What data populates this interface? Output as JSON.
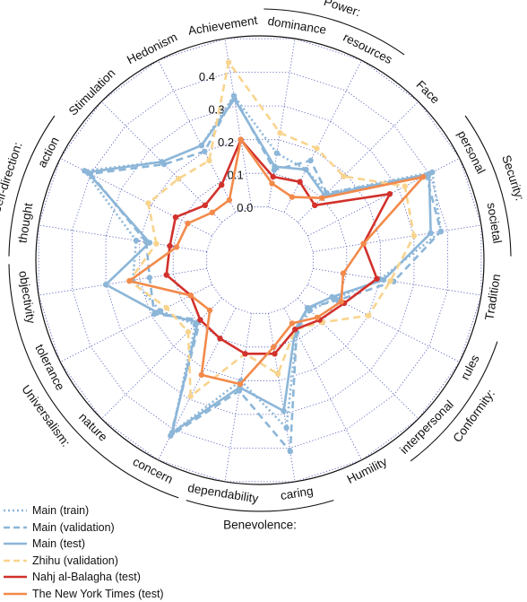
{
  "chart_data": {
    "type": "radar",
    "title": "",
    "axes": [
      {
        "label": "thought",
        "group": "Self-direction:"
      },
      {
        "label": "action",
        "group": "Self-direction:"
      },
      {
        "label": "Stimulation",
        "group": ""
      },
      {
        "label": "Hedonism",
        "group": ""
      },
      {
        "label": "Achievement",
        "group": ""
      },
      {
        "label": "dominance",
        "group": "Power:"
      },
      {
        "label": "resources",
        "group": "Power:"
      },
      {
        "label": "Face",
        "group": ""
      },
      {
        "label": "personal",
        "group": "Security:"
      },
      {
        "label": "societal",
        "group": "Security:"
      },
      {
        "label": "Tradition",
        "group": ""
      },
      {
        "label": "rules",
        "group": "Conformity:"
      },
      {
        "label": "interpersonal",
        "group": "Conformity:"
      },
      {
        "label": "Humility",
        "group": ""
      },
      {
        "label": "caring",
        "group": "Benevolence:"
      },
      {
        "label": "dependability",
        "group": "Benevolence:"
      },
      {
        "label": "concern",
        "group": "Universalism:"
      },
      {
        "label": "nature",
        "group": "Universalism:"
      },
      {
        "label": "tolerance",
        "group": "Universalism:"
      },
      {
        "label": "objectivity",
        "group": "Universalism:"
      }
    ],
    "radial_ticks": [
      "0.0",
      "0.1",
      "0.2",
      "0.3",
      "0.4"
    ],
    "rlim": [
      0,
      0.5
    ],
    "grid": true,
    "legend_position": "bottom-left",
    "series": [
      {
        "name": "Main (train)",
        "color": "#8cb6d8",
        "dash": "dotted",
        "values": [
          0.21,
          0.42,
          0.25,
          0.22,
          0.33,
          0.16,
          0.14,
          0.12,
          0.41,
          0.38,
          0.2,
          0.09,
          0.05,
          0.08,
          0.34,
          0.2,
          0.41,
          0.11,
          0.17,
          0.22
        ]
      },
      {
        "name": "Main (validation)",
        "color": "#8cb6d8",
        "dash": "dashed",
        "values": [
          0.18,
          0.4,
          0.24,
          0.2,
          0.33,
          0.11,
          0.17,
          0.12,
          0.39,
          0.38,
          0.24,
          0.1,
          0.04,
          0.08,
          0.41,
          0.23,
          0.42,
          0.09,
          0.19,
          0.17
        ]
      },
      {
        "name": "Main (test)",
        "color": "#8cb6d8",
        "dash": "solid",
        "values": [
          0.17,
          0.41,
          0.25,
          0.22,
          0.32,
          0.12,
          0.14,
          0.11,
          0.4,
          0.35,
          0.21,
          0.08,
          0.04,
          0.07,
          0.29,
          0.22,
          0.41,
          0.1,
          0.18,
          0.3
        ]
      },
      {
        "name": "Zhihu (validation)",
        "color": "#f8d48e",
        "dash": "dashed",
        "values": [
          0.15,
          0.21,
          0.18,
          0.17,
          0.43,
          0.22,
          0.21,
          0.19,
          0.32,
          0.3,
          0.23,
          0.2,
          0.1,
          0.07,
          0.18,
          0.12,
          0.29,
          0.14,
          0.15,
          0.23
        ]
      },
      {
        "name": "Nahj al-Balagha (test)",
        "color": "#d2312c",
        "dash": "solid",
        "values": [
          0.11,
          0.12,
          0.07,
          0.09,
          0.2,
          0.09,
          0.1,
          0.07,
          0.27,
          0.15,
          0.19,
          0.12,
          0.09,
          0.07,
          0.12,
          0.12,
          0.1,
          0.09,
          0.07,
          0.12
        ]
      },
      {
        "name": "The New York Times (test)",
        "color": "#f28a4b",
        "dash": "solid",
        "values": [
          0.09,
          0.08,
          0.04,
          0.04,
          0.2,
          0.07,
          0.05,
          0.1,
          0.38,
          0.15,
          0.09,
          0.11,
          0.08,
          0.05,
          0.1,
          0.21,
          0.22,
          0.05,
          0.07,
          0.23
        ]
      }
    ]
  }
}
